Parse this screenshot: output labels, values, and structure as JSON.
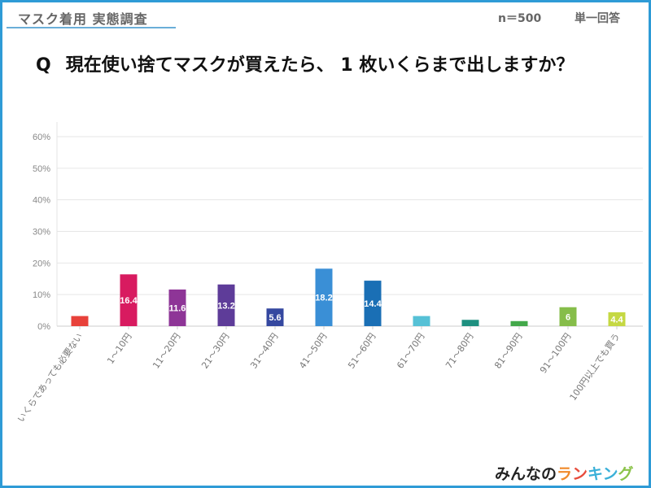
{
  "header": {
    "survey_title": "マスク着用 実態調査",
    "sample_size": "n＝500",
    "answer_type": "単一回答"
  },
  "question": {
    "prefix": "Q",
    "text": "現在使い捨てマスクが買えたら、 1 枚いくらまで出しますか？"
  },
  "logo": {
    "part1": "みんなの",
    "part2_chars": [
      "ラ",
      "ン",
      "キ",
      "ン",
      "グ"
    ],
    "part2_colors": [
      "#f08a2a",
      "#e74c3c",
      "#3ab0d8",
      "#3ab0d8",
      "#8bc34a"
    ]
  },
  "chart_data": {
    "type": "bar",
    "title": "現在使い捨てマスクが買えたら、 1 枚いくらまで出しますか？",
    "xlabel": "",
    "ylabel": "",
    "ylim": [
      0,
      60
    ],
    "yticks": [
      0,
      10,
      20,
      30,
      40,
      50,
      60
    ],
    "ytick_labels": [
      "0%",
      "10%",
      "20%",
      "30%",
      "40%",
      "50%",
      "60%"
    ],
    "grid": true,
    "legend": "none",
    "categories": [
      "いくらであっても必要ない",
      "1～10円",
      "11～20円",
      "21～30円",
      "31～40円",
      "41～50円",
      "51～60円",
      "61～70円",
      "71～80円",
      "81～90円",
      "91～100円",
      "100円以上でも買う"
    ],
    "values": [
      3.2,
      16.4,
      11.6,
      13.2,
      5.6,
      18.2,
      14.4,
      3.2,
      2.0,
      1.6,
      6,
      4.4
    ],
    "data_labels": [
      "",
      "16.4",
      "11.6",
      "13.2",
      "5.6",
      "18.2",
      "14.4",
      "",
      "",
      "",
      "6",
      "4.4"
    ],
    "colors": [
      "#e8413a",
      "#d81b60",
      "#8e3597",
      "#5e3c99",
      "#3548a0",
      "#3a8fd6",
      "#1a6fb5",
      "#56c1d6",
      "#1e9080",
      "#43a84a",
      "#86bd4a",
      "#c5d843"
    ]
  }
}
